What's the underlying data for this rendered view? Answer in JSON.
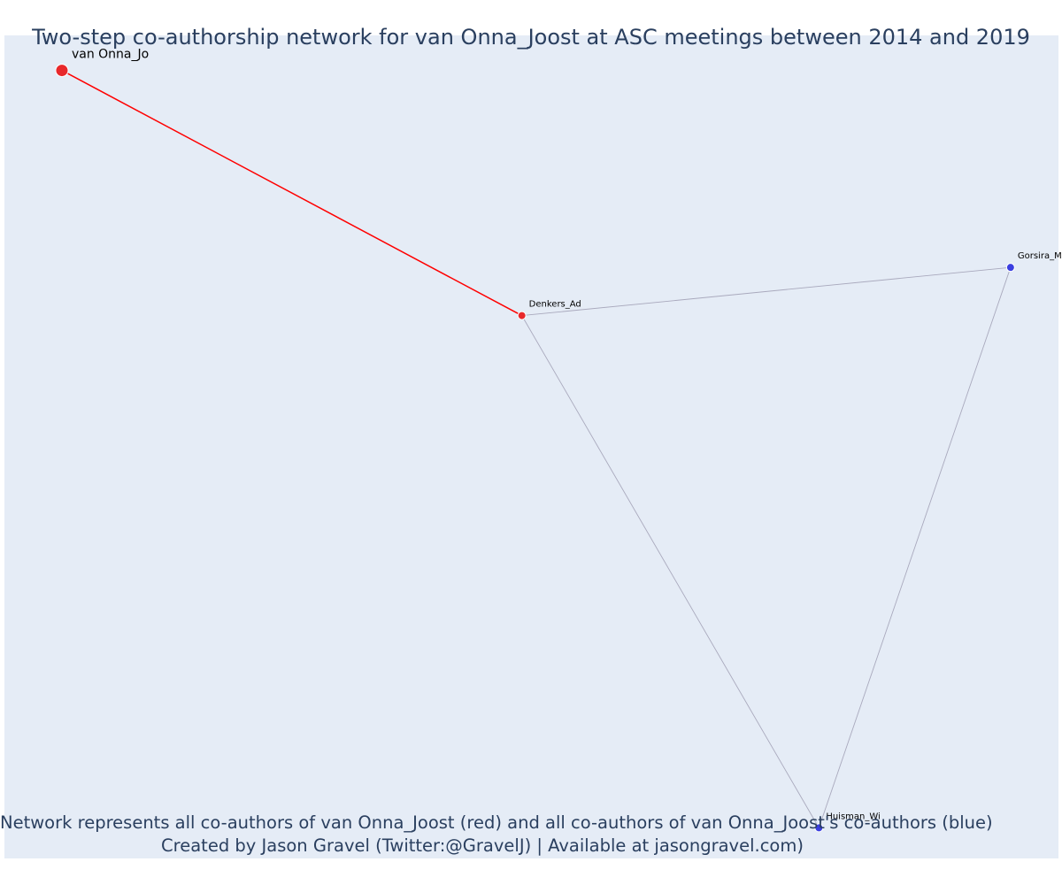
{
  "title": "Two-step co-authorship network for van Onna_Joost at ASC meetings between 2014 and 2019",
  "caption": {
    "line1": "Network represents all co-authors of van Onna_Joost (red) and all co-authors of van Onna_Joost's co-authors (blue)",
    "line2": "Created by Jason Gravel (Twitter:@GravelJ) | Available at jasongravel.com)"
  },
  "colors": {
    "background": "#e5ecf6",
    "focal": "#e8282b",
    "first_step": "#e8282b",
    "second_step": "#3b3fe0",
    "focal_edge": "#ff0000",
    "other_edge": "#a9a9bd"
  },
  "chart_data": {
    "type": "network",
    "title": "Two-step co-authorship network for van Onna_Joost at ASC meetings between 2014 and 2019",
    "nodes": [
      {
        "id": "van Onna_Jo",
        "label": "van Onna_Jo",
        "group": "focal",
        "x": -0.98,
        "y": 0.88
      },
      {
        "id": "Denkers_Ad",
        "label": "Denkers_Ad",
        "group": "co-author",
        "x": -0.02,
        "y": 0.32
      },
      {
        "id": "Gorsira_Ma",
        "label": "Gorsira_Ma",
        "group": "co-author-of-co-author",
        "x": 1.0,
        "y": 0.43
      },
      {
        "id": "Huisman_Wi",
        "label": "Huisman_Wi",
        "group": "co-author-of-co-author",
        "x": 0.6,
        "y": -0.85
      }
    ],
    "edges": [
      {
        "source": "van Onna_Jo",
        "target": "Denkers_Ad",
        "type": "focal"
      },
      {
        "source": "Denkers_Ad",
        "target": "Gorsira_Ma",
        "type": "other"
      },
      {
        "source": "Denkers_Ad",
        "target": "Huisman_Wi",
        "type": "other"
      },
      {
        "source": "Gorsira_Ma",
        "target": "Huisman_Wi",
        "type": "other"
      }
    ],
    "xlim": [
      -1.1,
      1.1
    ],
    "ylim": [
      -0.92,
      0.96
    ],
    "grid": false,
    "legend": "none"
  }
}
